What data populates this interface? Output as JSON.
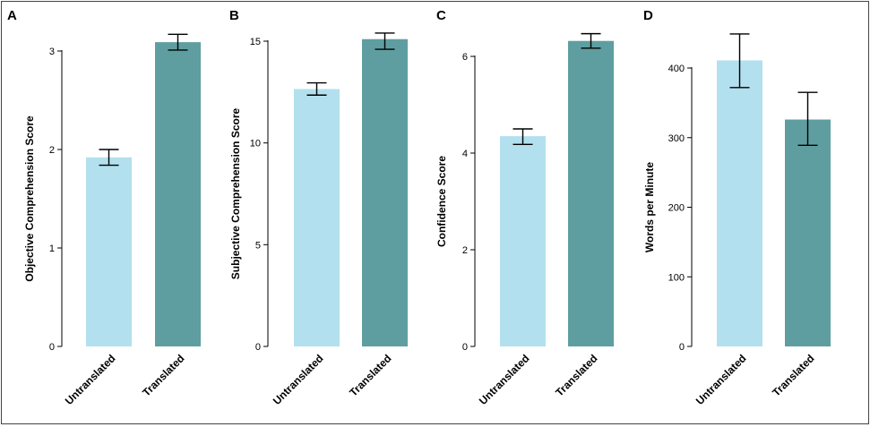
{
  "colors": {
    "untranslated": "#b3e0ee",
    "translated": "#5f9ea0"
  },
  "chart_data": [
    {
      "panel": "A",
      "type": "bar",
      "ylabel": "Objective Comprehension Score",
      "ylim": [
        0,
        3
      ],
      "yticks": [
        0,
        1,
        2,
        3
      ],
      "categories": [
        "Untranslated",
        "Translated"
      ],
      "values": [
        1.92,
        3.09
      ],
      "error_low": [
        1.84,
        3.01
      ],
      "error_high": [
        2.0,
        3.17
      ]
    },
    {
      "panel": "B",
      "type": "bar",
      "ylabel": "Subjective Comprehension Score",
      "ylim": [
        0,
        15
      ],
      "yticks": [
        0,
        5,
        10,
        15
      ],
      "categories": [
        "Untranslated",
        "Translated"
      ],
      "values": [
        12.65,
        15.1
      ],
      "error_low": [
        12.35,
        14.6
      ],
      "error_high": [
        12.95,
        15.4
      ]
    },
    {
      "panel": "C",
      "type": "bar",
      "ylabel": "Confidence Score",
      "ylim": [
        0,
        6
      ],
      "yticks": [
        0,
        2,
        4,
        6
      ],
      "categories": [
        "Untranslated",
        "Translated"
      ],
      "values": [
        4.35,
        6.32
      ],
      "error_low": [
        4.18,
        6.17
      ],
      "error_high": [
        4.5,
        6.47
      ]
    },
    {
      "panel": "D",
      "type": "bar",
      "ylabel": "Words per Minute",
      "ylim": [
        0,
        400
      ],
      "yticks": [
        0,
        100,
        200,
        300,
        400
      ],
      "categories": [
        "Untranslated",
        "Translated"
      ],
      "values": [
        411,
        326
      ],
      "error_low": [
        372,
        289
      ],
      "error_high": [
        449,
        365
      ]
    }
  ]
}
